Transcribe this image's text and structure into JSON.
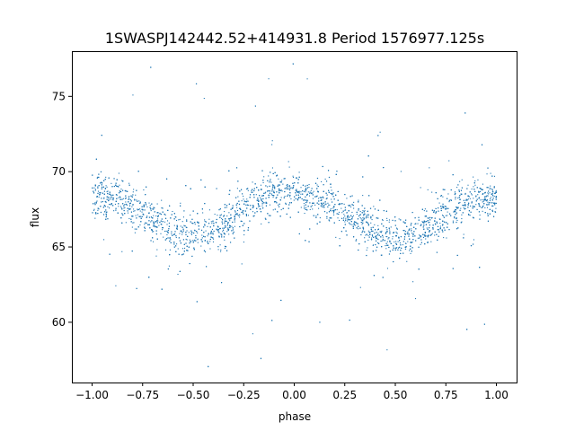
{
  "chart_data": {
    "type": "scatter",
    "title": "1SWASPJ142442.52+414931.8 Period 1576977.125s",
    "xlabel": "phase",
    "ylabel": "flux",
    "xlim": [
      -1.1,
      1.1
    ],
    "ylim": [
      56.0,
      78.0
    ],
    "x_ticks": [
      -1.0,
      -0.75,
      -0.5,
      -0.25,
      0.0,
      0.25,
      0.5,
      0.75,
      1.0
    ],
    "x_tick_labels": [
      "−1.00",
      "−0.75",
      "−0.50",
      "−0.25",
      "0.00",
      "0.25",
      "0.50",
      "0.75",
      "1.00"
    ],
    "y_ticks": [
      60,
      65,
      70,
      75
    ],
    "y_tick_labels": [
      "60",
      "65",
      "70",
      "75"
    ],
    "grid": false,
    "point_color": "#1f77b4",
    "series": [
      {
        "x": [
          -1.0,
          -0.9,
          -0.8,
          -0.7,
          -0.6,
          -0.5,
          -0.4,
          -0.3,
          -0.2,
          -0.1,
          0.0,
          0.1,
          0.2,
          0.3,
          0.4,
          0.5,
          0.6,
          0.7,
          0.8,
          0.9,
          1.0
        ],
        "y": [
          68.5,
          68.3,
          67.8,
          66.8,
          66.0,
          65.7,
          66.0,
          67.0,
          68.2,
          68.8,
          68.6,
          68.3,
          67.8,
          66.8,
          66.0,
          65.6,
          65.9,
          66.8,
          67.7,
          68.2,
          68.2
        ]
      }
    ]
  }
}
